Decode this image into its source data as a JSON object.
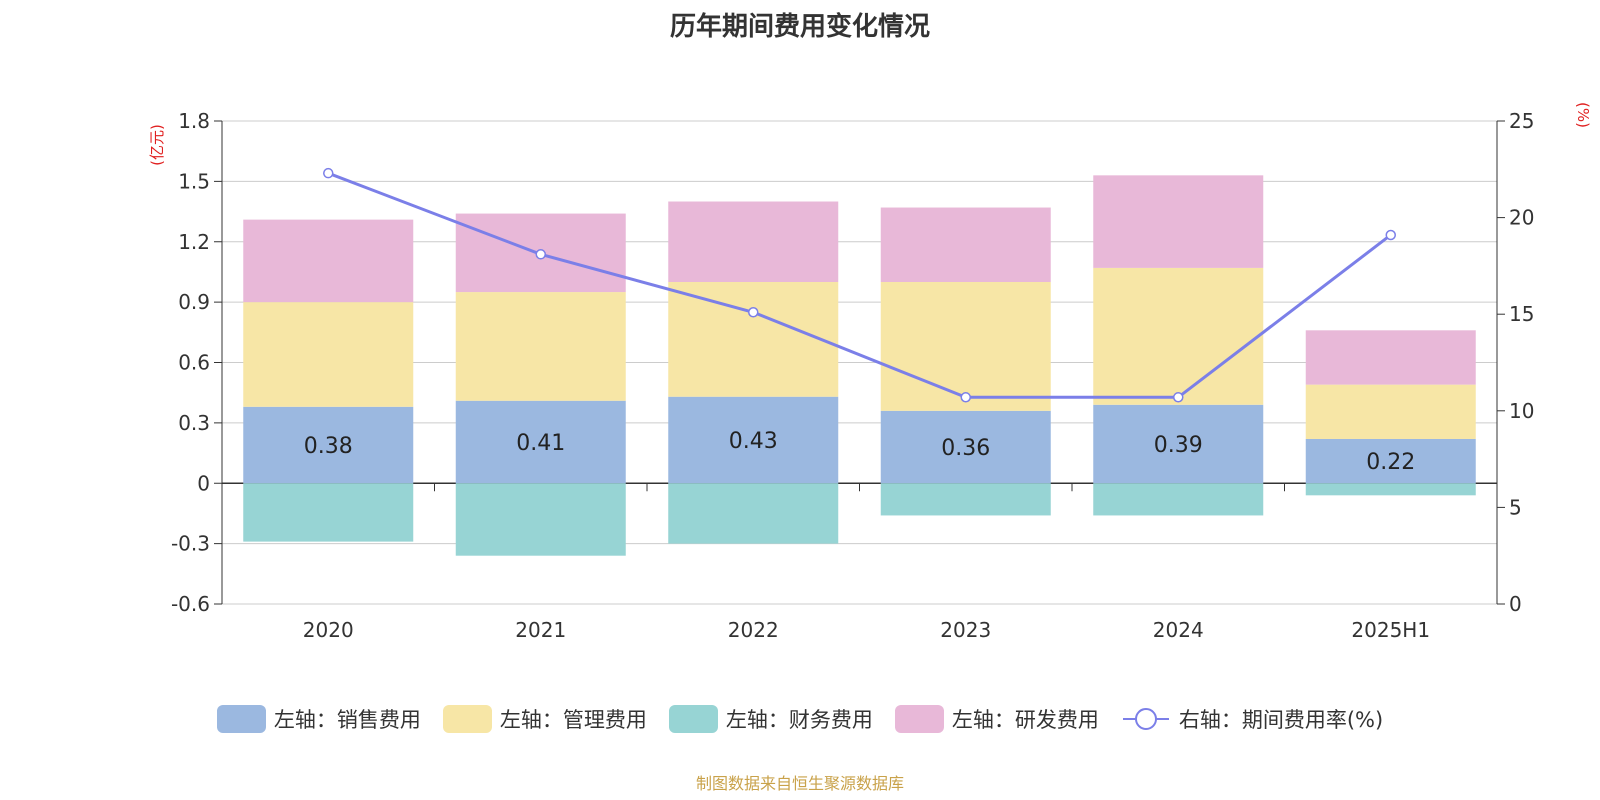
{
  "title": "历年期间费用变化情况",
  "source": "制图数据来自恒生聚源数据库",
  "chart_data": {
    "type": "bar",
    "stacked": true,
    "categories": [
      "2020",
      "2021",
      "2022",
      "2023",
      "2024",
      "2025H1"
    ],
    "left_axis": {
      "unit": "(亿元)",
      "ylim": [
        -0.6,
        1.8
      ],
      "ticks": [
        "1.8",
        "1.5",
        "1.2",
        "0.9",
        "0.6",
        "0.3",
        "0",
        "-0.3",
        "-0.6"
      ]
    },
    "right_axis": {
      "unit": "(%)",
      "ylim": [
        0,
        25
      ],
      "ticks": [
        "25",
        "20",
        "15",
        "10",
        "5",
        "0"
      ]
    },
    "grid": true,
    "legend_position": "bottom",
    "series": [
      {
        "name": "左轴：销售费用",
        "axis": "left",
        "color": "#9bb8e0",
        "values": [
          0.38,
          0.41,
          0.43,
          0.36,
          0.39,
          0.22
        ],
        "labels": [
          "0.38",
          "0.41",
          "0.43",
          "0.36",
          "0.39",
          "0.22"
        ]
      },
      {
        "name": "左轴：管理费用",
        "axis": "left",
        "color": "#f7e6a6",
        "values": [
          0.52,
          0.54,
          0.57,
          0.64,
          0.68,
          0.27
        ]
      },
      {
        "name": "左轴：财务费用",
        "axis": "left",
        "color": "#97d4d4",
        "values": [
          -0.29,
          -0.36,
          -0.3,
          -0.16,
          -0.16,
          -0.06
        ]
      },
      {
        "name": "左轴：研发费用",
        "axis": "left",
        "color": "#e8b8d8",
        "values": [
          0.41,
          0.39,
          0.4,
          0.37,
          0.46,
          0.27
        ]
      },
      {
        "name": "右轴：期间费用率(%)",
        "axis": "right",
        "type": "line",
        "color": "#7b7fe8",
        "values": [
          22.3,
          18.1,
          15.1,
          10.7,
          10.7,
          19.1
        ]
      }
    ]
  }
}
